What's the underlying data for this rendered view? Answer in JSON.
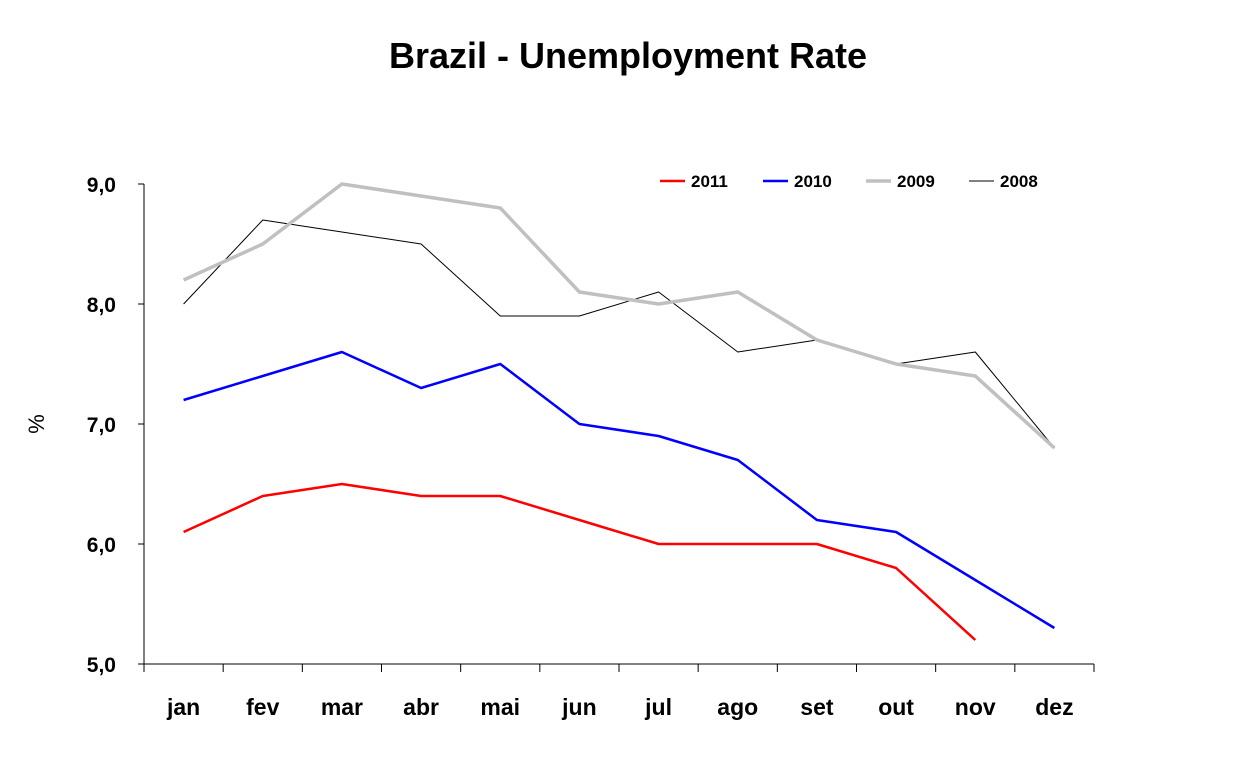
{
  "chart_data": {
    "type": "line",
    "title": "Brazil - Unemployment Rate",
    "xlabel": "",
    "ylabel": "%",
    "ylim": [
      5,
      9
    ],
    "yticks": [
      {
        "value": 5,
        "label": "5,0"
      },
      {
        "value": 6,
        "label": "6,0"
      },
      {
        "value": 7,
        "label": "7,0"
      },
      {
        "value": 8,
        "label": "8,0"
      },
      {
        "value": 9,
        "label": "9,0"
      }
    ],
    "categories": [
      "jan",
      "fev",
      "mar",
      "abr",
      "mai",
      "jun",
      "jul",
      "ago",
      "set",
      "out",
      "nov",
      "dez"
    ],
    "grid": false,
    "legend_position": "top-right",
    "series": [
      {
        "name": "2011",
        "color": "#ff0000",
        "line_weight": "medium",
        "values": [
          6.1,
          6.4,
          6.5,
          6.4,
          6.4,
          6.2,
          6.0,
          6.0,
          6.0,
          5.8,
          5.2,
          null
        ]
      },
      {
        "name": "2010",
        "color": "#0000ff",
        "line_weight": "medium",
        "values": [
          7.2,
          7.4,
          7.6,
          7.3,
          7.5,
          7.0,
          6.9,
          6.7,
          6.2,
          6.1,
          5.7,
          5.3
        ]
      },
      {
        "name": "2009",
        "color": "#c0c0c0",
        "line_weight": "thick",
        "values": [
          8.2,
          8.5,
          9.0,
          8.9,
          8.8,
          8.1,
          8.0,
          8.1,
          7.7,
          7.5,
          7.4,
          6.8
        ]
      },
      {
        "name": "2008",
        "color": "#000000",
        "line_weight": "thin",
        "values": [
          8.0,
          8.7,
          8.6,
          8.5,
          7.9,
          7.9,
          8.1,
          7.6,
          7.7,
          7.5,
          7.6,
          6.8
        ]
      }
    ]
  }
}
